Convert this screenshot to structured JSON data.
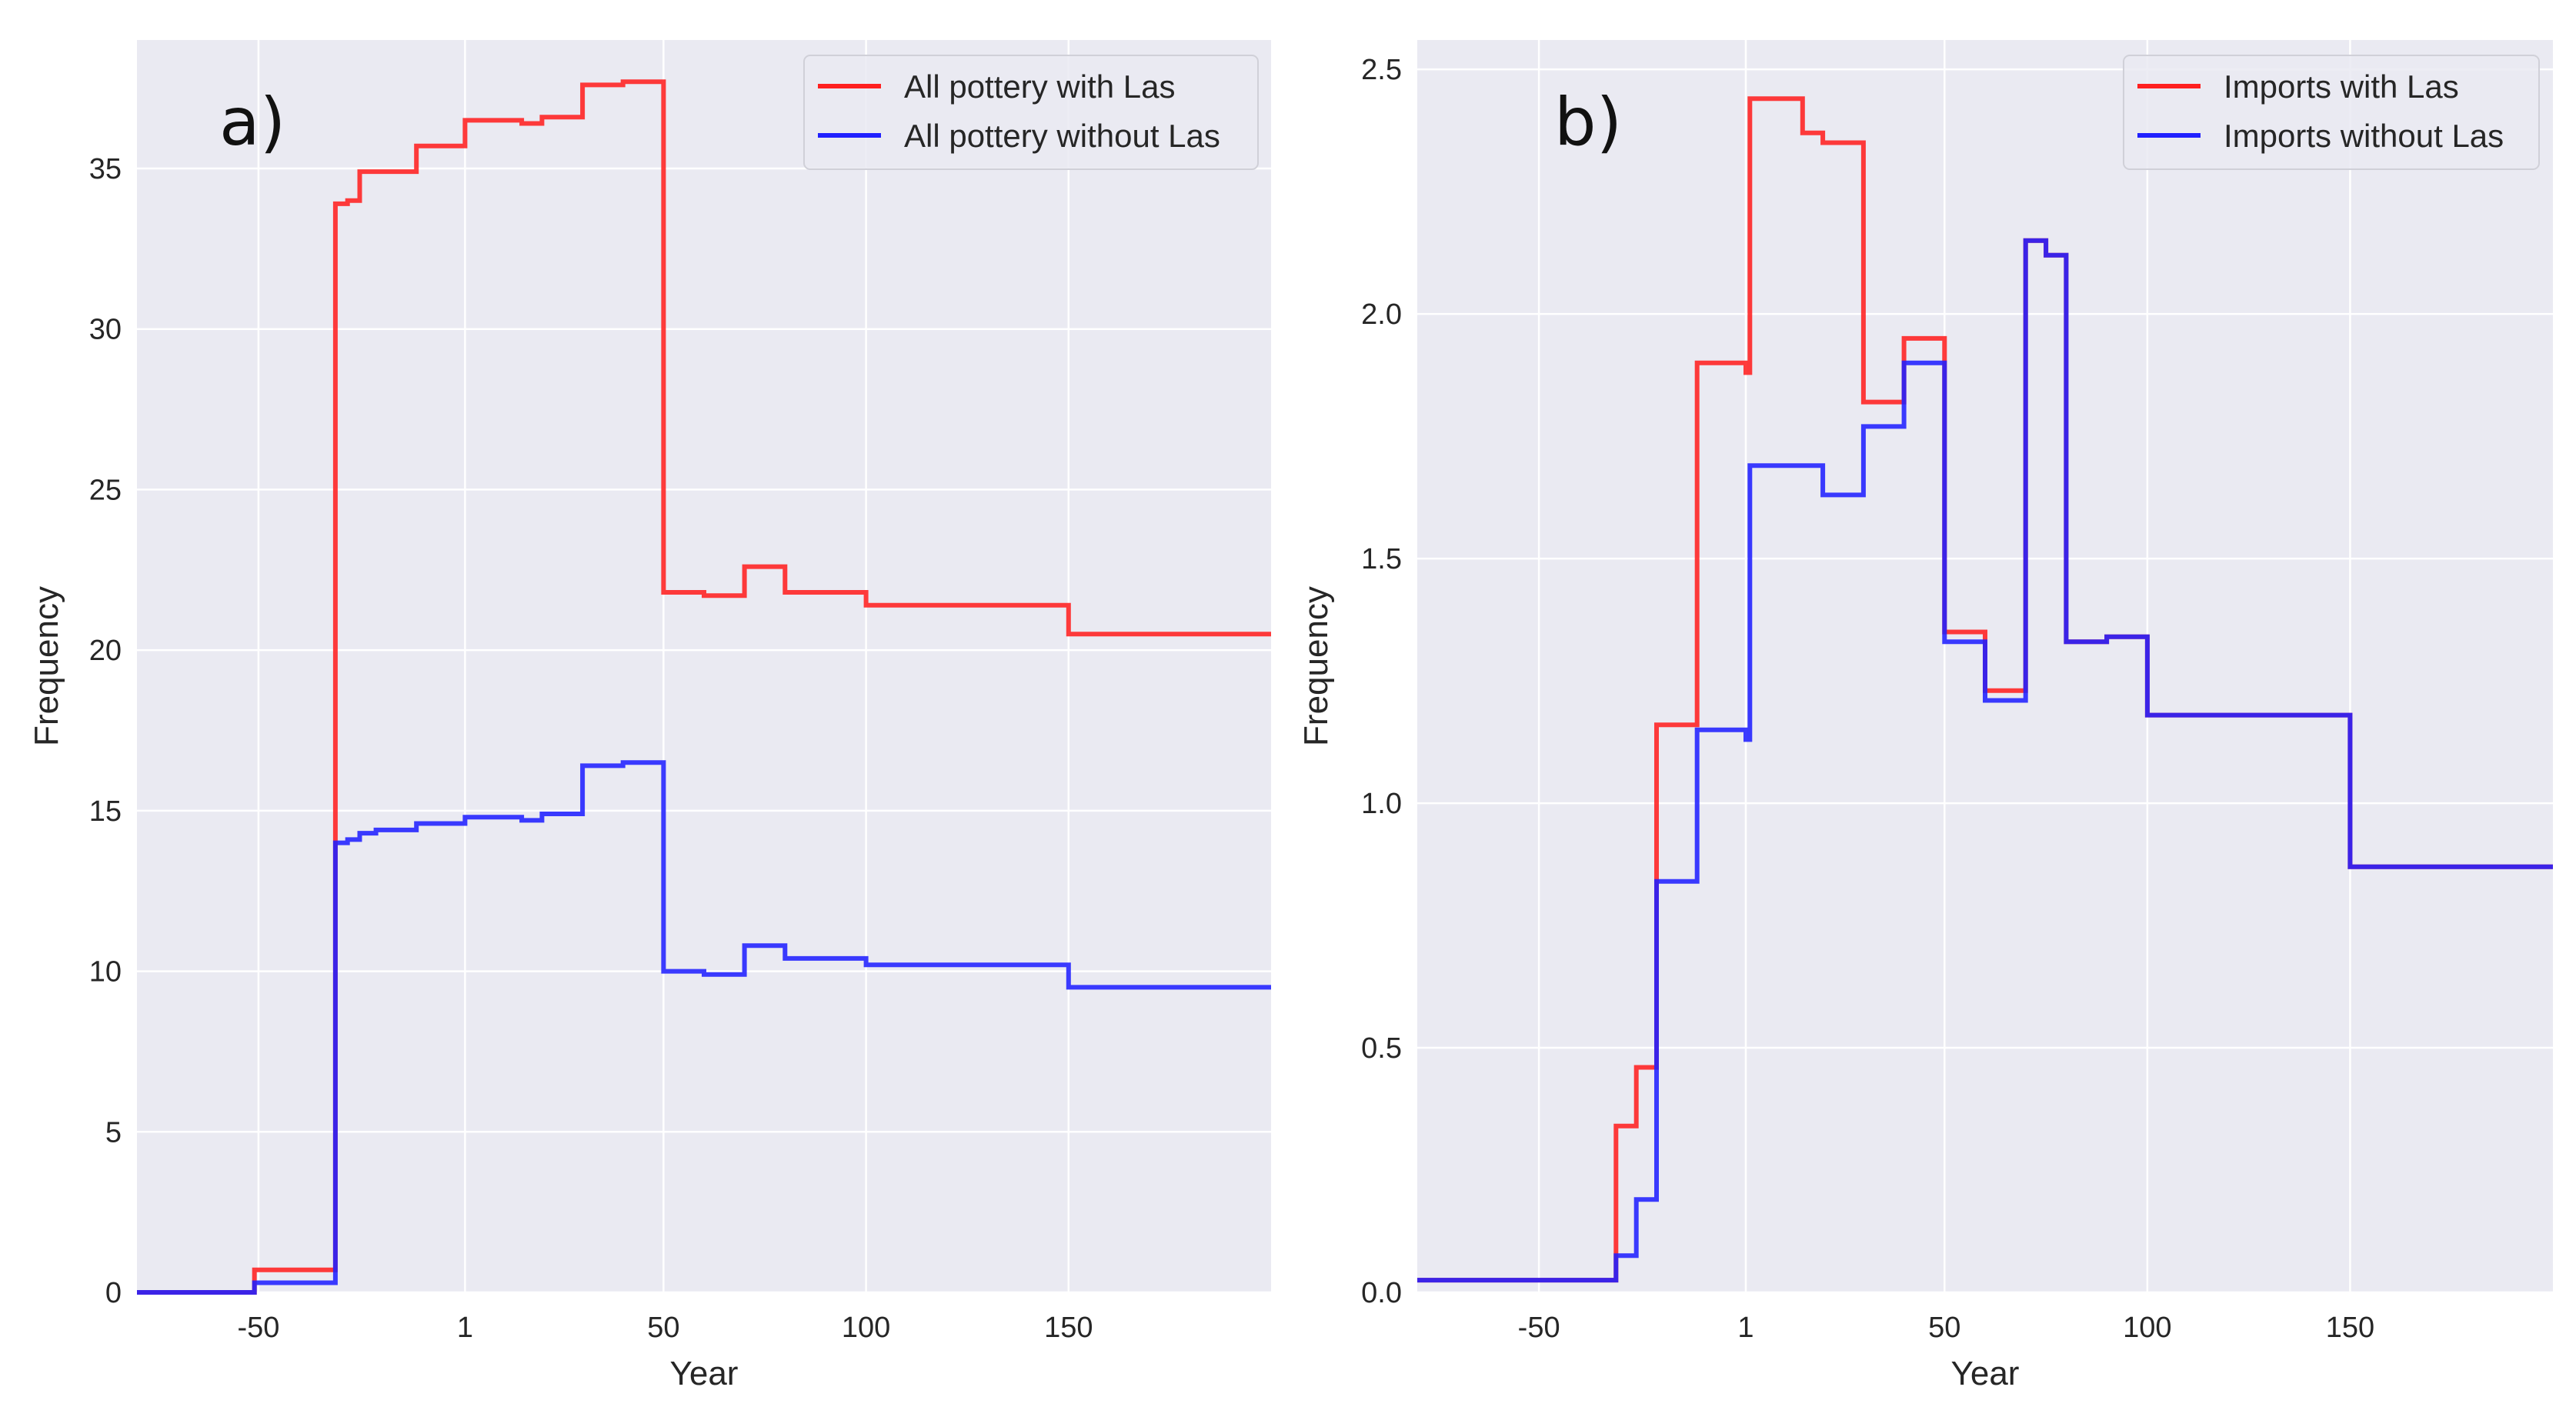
{
  "chart_data": [
    {
      "type": "line",
      "panel_label": "a)",
      "xlabel": "Year",
      "ylabel": "Frequency",
      "xlim": [
        -80,
        200
      ],
      "ylim": [
        0,
        39
      ],
      "xticks": [
        -50,
        1,
        50,
        100,
        150
      ],
      "xtick_labels": [
        "-50",
        "1",
        "50",
        "100",
        "150"
      ],
      "yticks": [
        0,
        5,
        10,
        15,
        20,
        25,
        30,
        35
      ],
      "ytick_labels": [
        "0",
        "5",
        "10",
        "15",
        "20",
        "25",
        "30",
        "35"
      ],
      "grid": true,
      "legend_position": "top-right",
      "series": [
        {
          "name": "All pottery with Las",
          "color": "#ff2020",
          "step": true,
          "x": [
            -80,
            -51,
            -31,
            -28,
            -25,
            -21,
            -11,
            1,
            15,
            20,
            30,
            40,
            49,
            50,
            60,
            70,
            80,
            100,
            150,
            200
          ],
          "y": [
            0,
            0.7,
            33.9,
            34.0,
            34.9,
            34.9,
            35.7,
            36.5,
            36.4,
            36.6,
            37.6,
            37.7,
            37.7,
            21.8,
            21.7,
            22.6,
            21.8,
            21.4,
            20.5,
            20.5
          ]
        },
        {
          "name": "All pottery without Las",
          "color": "#2020ff",
          "step": true,
          "x": [
            -80,
            -51,
            -31,
            -28,
            -25,
            -21,
            -11,
            1,
            15,
            20,
            30,
            40,
            49,
            50,
            60,
            70,
            80,
            100,
            150,
            200
          ],
          "y": [
            0,
            0.3,
            14.0,
            14.1,
            14.3,
            14.4,
            14.6,
            14.8,
            14.7,
            14.9,
            16.4,
            16.5,
            16.5,
            10.0,
            9.9,
            10.8,
            10.4,
            10.2,
            9.5,
            9.5
          ]
        }
      ]
    },
    {
      "type": "line",
      "panel_label": "b)",
      "xlabel": "Year",
      "ylabel": "Frequency",
      "xlim": [
        -80,
        200
      ],
      "ylim": [
        0,
        2.56
      ],
      "xticks": [
        -50,
        1,
        50,
        100,
        150
      ],
      "xtick_labels": [
        "-50",
        "1",
        "50",
        "100",
        "150"
      ],
      "yticks": [
        0,
        0.5,
        1.0,
        1.5,
        2.0,
        2.5
      ],
      "ytick_labels": [
        "0.0",
        "0.5",
        "1.0",
        "1.5",
        "2.0",
        "2.5"
      ],
      "grid": true,
      "legend_position": "top-right",
      "series": [
        {
          "name": "Imports with Las",
          "color": "#ff2020",
          "step": true,
          "x": [
            -80,
            -31,
            -26,
            -21,
            -11,
            1,
            2,
            15,
            20,
            30,
            40,
            50,
            60,
            70,
            75,
            80,
            90,
            100,
            150,
            200
          ],
          "y": [
            0.025,
            0.34,
            0.46,
            1.16,
            1.9,
            1.88,
            2.44,
            2.37,
            2.35,
            1.82,
            1.95,
            1.35,
            1.23,
            2.15,
            2.12,
            1.33,
            1.34,
            1.18,
            0.87,
            0.87
          ]
        },
        {
          "name": "Imports without Las",
          "color": "#2020ff",
          "step": true,
          "x": [
            -80,
            -31,
            -26,
            -21,
            -11,
            1,
            2,
            15,
            20,
            30,
            40,
            50,
            60,
            70,
            75,
            80,
            90,
            100,
            150,
            200
          ],
          "y": [
            0.025,
            0.075,
            0.19,
            0.84,
            1.15,
            1.13,
            1.69,
            1.69,
            1.63,
            1.77,
            1.9,
            1.33,
            1.21,
            2.15,
            2.12,
            1.33,
            1.34,
            1.18,
            0.87,
            0.87
          ]
        }
      ]
    }
  ]
}
